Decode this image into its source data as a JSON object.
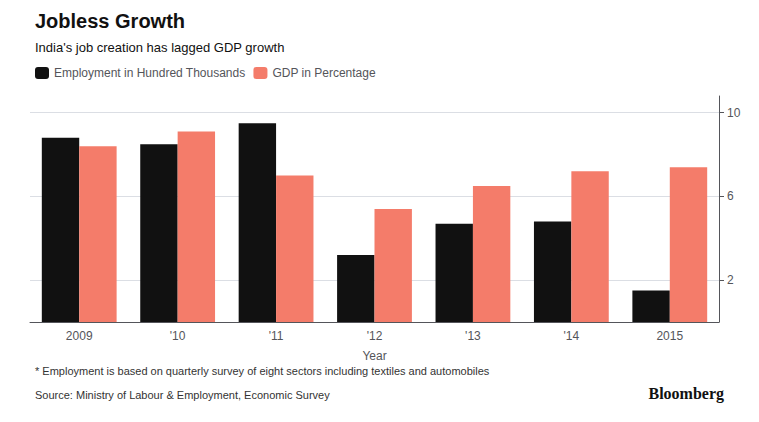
{
  "chart_data": {
    "type": "bar",
    "title": "Jobless Growth",
    "subtitle": "India's job creation has lagged GDP growth",
    "xlabel": "Year",
    "categories": [
      "2009",
      "'10",
      "'11",
      "'12",
      "'13",
      "'14",
      "2015"
    ],
    "series": [
      {
        "name": "Employment in Hundred Thousands",
        "color": "#111111",
        "values": [
          8.8,
          8.5,
          9.5,
          3.2,
          4.7,
          4.8,
          1.5
        ]
      },
      {
        "name": "GDP in Percentage",
        "color": "#f47c6a",
        "values": [
          8.4,
          9.1,
          7.0,
          5.4,
          6.5,
          7.2,
          7.4
        ]
      }
    ],
    "ylim": [
      0,
      10.8
    ],
    "yticks": [
      2,
      6,
      10
    ],
    "grid": true,
    "legend": "top-left",
    "annotations": [
      "* Employment is based on quarterly survey of eight sectors including textiles and automobiles",
      "Source: Ministry of Labour & Employment, Economic Survey",
      "Bloomberg"
    ]
  }
}
